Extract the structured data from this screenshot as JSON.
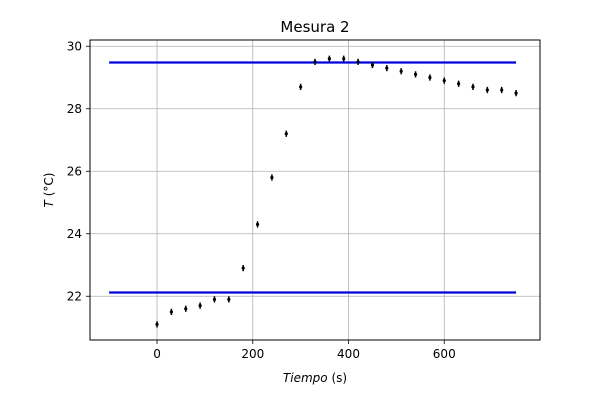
{
  "chart_data": {
    "type": "scatter",
    "title": "Mesura 2",
    "xlabel": {
      "italic": "Tiempo",
      "unit": " (s)"
    },
    "ylabel": {
      "italic": "T",
      "unit": " (°C)"
    },
    "xlim": [
      -140,
      800
    ],
    "ylim": [
      20.6,
      30.2
    ],
    "xticks": [
      0,
      200,
      400,
      600
    ],
    "yticks": [
      22,
      24,
      26,
      28,
      30
    ],
    "grid": true,
    "colors": {
      "points": "#000000",
      "reference_lines": "#0000dd",
      "grid": "#b0b0b0"
    },
    "series": [
      {
        "marker": "errorbar-point",
        "x": [
          0,
          30,
          60,
          90,
          120,
          150,
          180,
          210,
          240,
          270,
          300,
          330,
          360,
          390,
          420,
          450,
          480,
          510,
          540,
          570,
          600,
          630,
          660,
          690,
          720,
          750
        ],
        "y": [
          21.1,
          21.5,
          21.6,
          21.7,
          21.9,
          21.9,
          22.9,
          24.3,
          25.8,
          27.2,
          28.7,
          29.5,
          29.6,
          29.6,
          29.5,
          29.4,
          29.3,
          29.2,
          29.1,
          29.0,
          28.9,
          28.8,
          28.7,
          28.6,
          28.6,
          28.5
        ],
        "yerr": 0.1
      }
    ],
    "reference_lines": [
      {
        "y": 29.48,
        "x_start": -100,
        "x_end": 750
      },
      {
        "y": 22.12,
        "x_start": -100,
        "x_end": 750
      }
    ]
  }
}
